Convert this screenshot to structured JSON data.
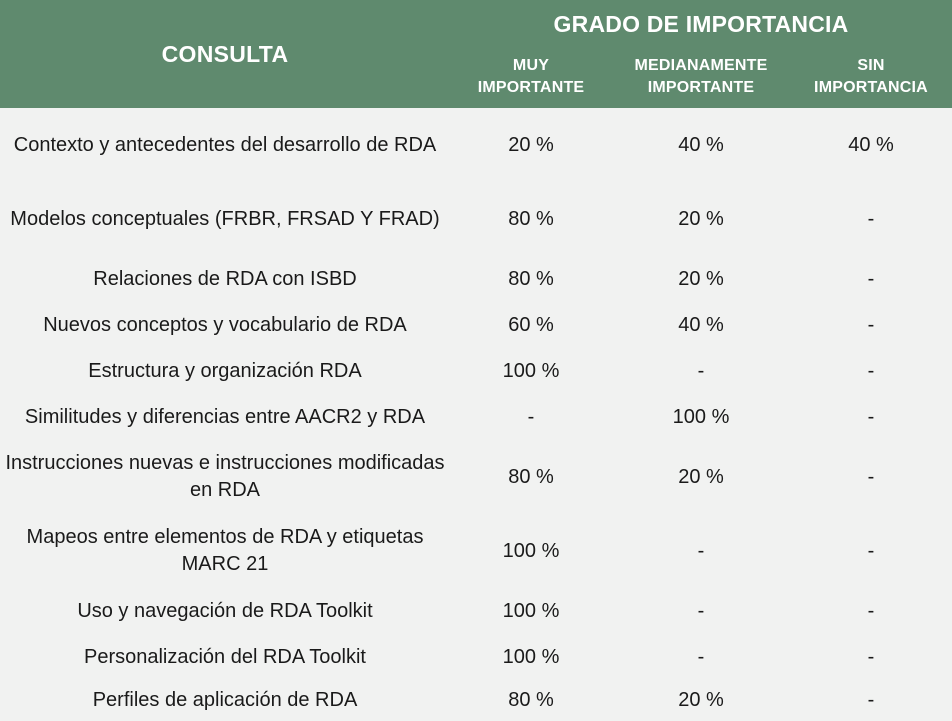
{
  "colors": {
    "header_bg": "#5f8a6e",
    "header_text": "#ffffff",
    "body_bg": "#f1f2f1",
    "body_text": "#1a1a1a"
  },
  "header": {
    "consulta": "CONSULTA",
    "grado": "GRADO DE IMPORTANCIA",
    "columns": [
      "MUY\nIMPORTANTE",
      "MEDIANAMENTE\nIMPORTANTE",
      "SIN\nIMPORTANCIA"
    ]
  },
  "rows": [
    {
      "label": "Contexto y antecedentes del desarrollo de RDA",
      "values": [
        "20 %",
        "40 %",
        "40 %"
      ]
    },
    {
      "label": "Modelos conceptuales (FRBR, FRSAD Y FRAD)",
      "values": [
        "80 %",
        "20 %",
        "-"
      ]
    },
    {
      "label": "Relaciones de RDA con ISBD",
      "values": [
        "80 %",
        "20 %",
        "-"
      ]
    },
    {
      "label": "Nuevos conceptos y vocabulario de RDA",
      "values": [
        "60 %",
        "40 %",
        "-"
      ]
    },
    {
      "label": "Estructura y organización RDA",
      "values": [
        "100 %",
        "-",
        "-"
      ]
    },
    {
      "label": "Similitudes y diferencias entre AACR2 y RDA",
      "values": [
        "-",
        "100 %",
        "-"
      ]
    },
    {
      "label": "Instrucciones nuevas e instrucciones modificadas en RDA",
      "values": [
        "80 %",
        "20 %",
        "-"
      ]
    },
    {
      "label": "Mapeos entre elementos de RDA y etiquetas MARC 21",
      "values": [
        "100 %",
        "-",
        "-"
      ]
    },
    {
      "label": "Uso y navegación de RDA Toolkit",
      "values": [
        "100 %",
        "-",
        "-"
      ]
    },
    {
      "label": "Personalización del RDA Toolkit",
      "values": [
        "100 %",
        "-",
        "-"
      ]
    },
    {
      "label": "Perfiles de aplicación de RDA",
      "values": [
        "80 %",
        "20 %",
        "-"
      ]
    }
  ]
}
